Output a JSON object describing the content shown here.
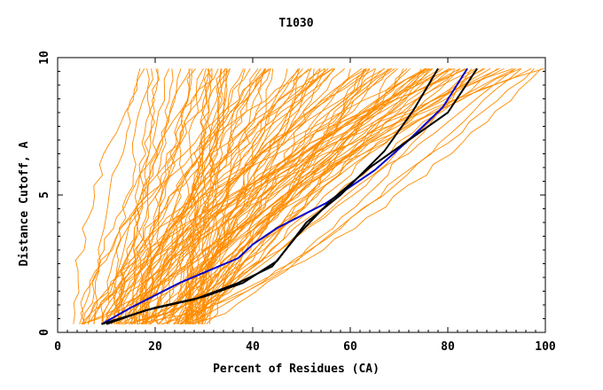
{
  "chart_data": {
    "type": "line",
    "title": "T1030",
    "xlabel": "Percent of Residues (CA)",
    "ylabel": "Distance Cutoff, A",
    "xlim": [
      0,
      100
    ],
    "ylim": [
      0,
      10
    ],
    "x_ticks": [
      "0",
      "20",
      "40",
      "60",
      "80",
      "100"
    ],
    "y_ticks": [
      "0",
      "5",
      "10"
    ],
    "grid": false,
    "legend": "none",
    "colors": {
      "background_models": "#ff8c00",
      "highlight_blue": "#0000cc",
      "highlight_black": "#000000"
    },
    "background_series": {
      "description_count": 120,
      "envelope_x_at_y_min": [
        3,
        36
      ],
      "envelope_x_at_y_max": [
        16,
        100
      ],
      "y_range": [
        0.3,
        9.6
      ]
    },
    "series": [
      {
        "color": "#0000cc",
        "points": [
          [
            9,
            0.3
          ],
          [
            15,
            0.9
          ],
          [
            25,
            1.8
          ],
          [
            37,
            2.7
          ],
          [
            40,
            3.2
          ],
          [
            45,
            3.8
          ],
          [
            55,
            4.7
          ],
          [
            65,
            5.9
          ],
          [
            72,
            7.0
          ],
          [
            79,
            8.2
          ],
          [
            84,
            9.6
          ]
        ]
      },
      {
        "color": "#000000",
        "points": [
          [
            9,
            0.3
          ],
          [
            20,
            0.9
          ],
          [
            30,
            1.3
          ],
          [
            38,
            1.8
          ],
          [
            45,
            2.6
          ],
          [
            51,
            4.0
          ],
          [
            58,
            5.0
          ],
          [
            67,
            6.6
          ],
          [
            73,
            8.1
          ],
          [
            78,
            9.6
          ]
        ]
      },
      {
        "color": "#000000",
        "points": [
          [
            10,
            0.3
          ],
          [
            18,
            0.8
          ],
          [
            28,
            1.2
          ],
          [
            37,
            1.8
          ],
          [
            44,
            2.4
          ],
          [
            49,
            3.5
          ],
          [
            56,
            4.8
          ],
          [
            64,
            6.0
          ],
          [
            72,
            7.0
          ],
          [
            80,
            8.0
          ],
          [
            86,
            9.6
          ]
        ]
      }
    ]
  }
}
